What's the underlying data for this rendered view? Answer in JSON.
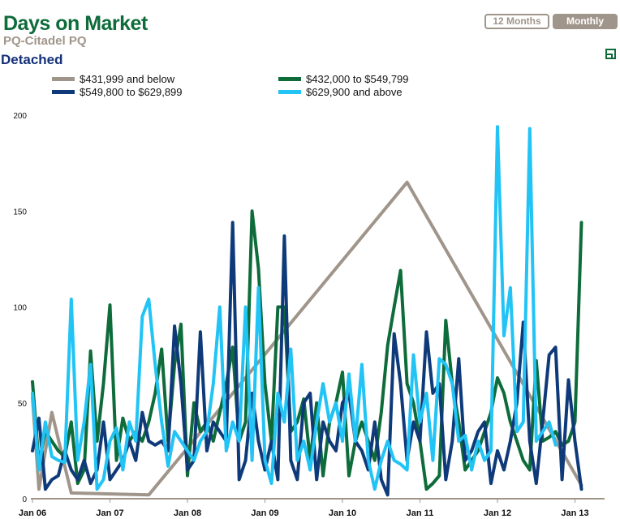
{
  "header": {
    "title": "Days on Market",
    "subtitle": "PQ-Citadel PQ",
    "section": "Detached"
  },
  "buttons": {
    "twelve_months": "12 Months",
    "monthly": "Monthly"
  },
  "colors": {
    "gray": "#a0958a",
    "green": "#0e6b3a",
    "navy": "#0f3a7a",
    "light_blue": "#22c3f5"
  },
  "chart_data": {
    "type": "line",
    "title": "Days on Market",
    "x_unit": "months since Jan 06",
    "x_ticks": [
      "Jan 06",
      "Jan 07",
      "Jan 08",
      "Jan 09",
      "Jan 10",
      "Jan 11",
      "Jan 12",
      "Jan 13"
    ],
    "y_ticks": [
      "0",
      "50",
      "100",
      "150",
      "200"
    ],
    "ylim": [
      0,
      200
    ],
    "legend": "top",
    "series": [
      {
        "name": "$431,999 and below",
        "color": "#a0958a",
        "x": [
          0,
          1,
          3,
          6,
          18,
          58,
          85
        ],
        "values": [
          53,
          5,
          45,
          3,
          2,
          165,
          7
        ]
      },
      {
        "name": "$432,000 to $549,799",
        "color": "#0e6b3a",
        "values": [
          61,
          18,
          35,
          30,
          25,
          22,
          40,
          8,
          15,
          77,
          30,
          60,
          101,
          20,
          42,
          30,
          35,
          30,
          40,
          55,
          78,
          30,
          70,
          91,
          12,
          50,
          35,
          40,
          30,
          45,
          60,
          79,
          30,
          40,
          150,
          120,
          60,
          30,
          100,
          100,
          35,
          40,
          52,
          20,
          50,
          12,
          40,
          50,
          66,
          12,
          30,
          40,
          30,
          20,
          45,
          80,
          100,
          119,
          60,
          50,
          30,
          5,
          8,
          12,
          93,
          60,
          40,
          15,
          20,
          25,
          35,
          45,
          63,
          55,
          40,
          30,
          20,
          15,
          72,
          30,
          32,
          35,
          28,
          30,
          40,
          144
        ]
      },
      {
        "name": "$549,800 to $629,899",
        "color": "#0f3a7a",
        "values": [
          25,
          42,
          5,
          10,
          12,
          25,
          15,
          10,
          20,
          8,
          15,
          40,
          10,
          15,
          20,
          30,
          20,
          45,
          30,
          28,
          30,
          25,
          90,
          60,
          15,
          20,
          87,
          25,
          40,
          35,
          30,
          144,
          10,
          20,
          55,
          30,
          15,
          30,
          10,
          137,
          20,
          10,
          50,
          55,
          10,
          40,
          30,
          25,
          50,
          55,
          30,
          25,
          15,
          40,
          10,
          2,
          86,
          60,
          20,
          40,
          30,
          87,
          55,
          60,
          10,
          30,
          73,
          20,
          25,
          35,
          40,
          8,
          25,
          15,
          30,
          50,
          92,
          30,
          8,
          40,
          75,
          79,
          10,
          62,
          30,
          5
        ]
      },
      {
        "name": "$629,900 and above",
        "color": "#22c3f5",
        "values": [
          55,
          15,
          40,
          22,
          20,
          19,
          104,
          20,
          40,
          70,
          5,
          10,
          30,
          37,
          15,
          40,
          30,
          95,
          104,
          70,
          40,
          17,
          35,
          30,
          25,
          20,
          30,
          35,
          60,
          100,
          25,
          40,
          30,
          100,
          20,
          110,
          20,
          8,
          55,
          40,
          78,
          20,
          30,
          15,
          40,
          60,
          40,
          50,
          30,
          65,
          30,
          70,
          20,
          5,
          20,
          30,
          20,
          18,
          15,
          75,
          40,
          55,
          20,
          73,
          70,
          60,
          30,
          33,
          15,
          30,
          20,
          25,
          194,
          85,
          110,
          35,
          40,
          193,
          30,
          35,
          40,
          28
        ]
      }
    ]
  }
}
